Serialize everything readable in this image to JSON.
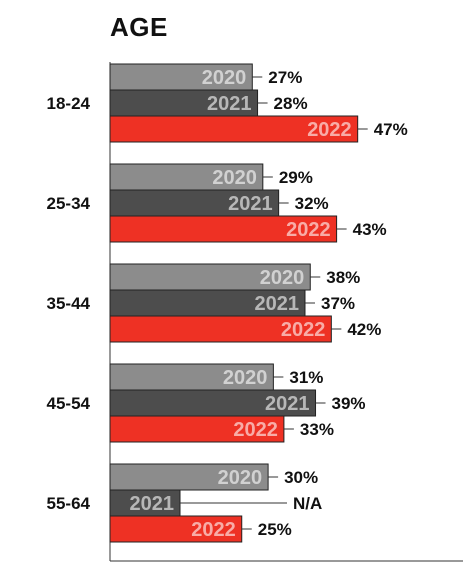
{
  "chart_data": {
    "type": "bar",
    "orientation": "horizontal",
    "title": "AGE",
    "categories": [
      "18-24",
      "25-34",
      "35-44",
      "45-54",
      "55-64"
    ],
    "series": [
      {
        "name": "2020",
        "color": "#8c8c8c",
        "values": [
          27,
          29,
          38,
          31,
          30
        ],
        "labels": [
          "27%",
          "29%",
          "38%",
          "31%",
          "30%"
        ]
      },
      {
        "name": "2021",
        "color": "#4d4d4d",
        "values": [
          28,
          32,
          37,
          39,
          null
        ],
        "labels": [
          "28%",
          "32%",
          "37%",
          "39%",
          "N/A"
        ]
      },
      {
        "name": "2022",
        "color": "#ee3124",
        "values": [
          47,
          43,
          42,
          33,
          25
        ],
        "labels": [
          "47%",
          "43%",
          "42%",
          "33%",
          "25%"
        ]
      }
    ],
    "legend": "none",
    "grid": false
  }
}
